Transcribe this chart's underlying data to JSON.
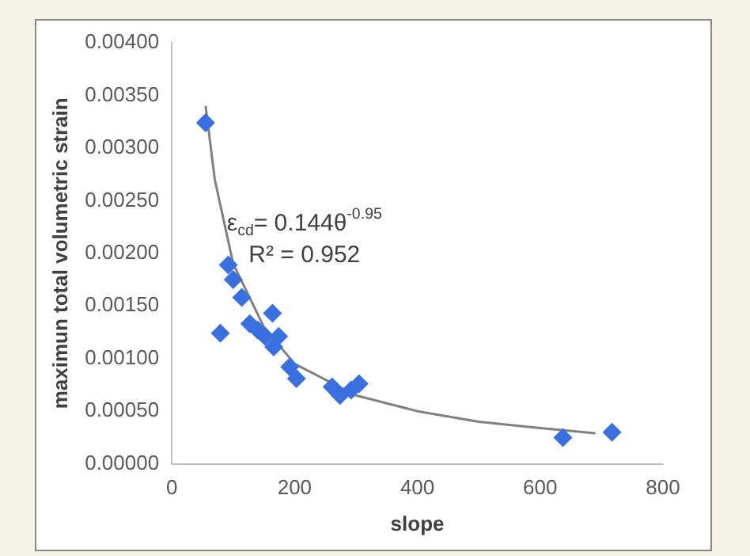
{
  "chart_data": {
    "type": "scatter",
    "xlabel": "slope",
    "ylabel": "maximun total volumetric strain",
    "xlim": [
      0,
      800
    ],
    "xticks": [
      0,
      200,
      400,
      600,
      800
    ],
    "ylim": [
      0,
      0.004
    ],
    "yticks": [
      {
        "value": 0,
        "label": "0.00000"
      },
      {
        "value": 0.0005,
        "label": "0.00050"
      },
      {
        "value": 0.001,
        "label": "0.00100"
      },
      {
        "value": 0.0015,
        "label": "0.00150"
      },
      {
        "value": 0.002,
        "label": "0.00200"
      },
      {
        "value": 0.0025,
        "label": "0.00250"
      },
      {
        "value": 0.003,
        "label": "0.00300"
      },
      {
        "value": 0.0035,
        "label": "0.00350"
      },
      {
        "value": 0.004,
        "label": "0.00400"
      }
    ],
    "grid": false,
    "legend": false,
    "marker": "diamond",
    "series": [
      {
        "color": "#3a6fe0",
        "x": [
          55,
          92,
          100,
          114,
          79,
          127,
          164,
          140,
          152,
          166,
          174,
          192,
          203,
          261,
          274,
          292,
          305,
          637,
          717
        ],
        "values": [
          0.00324,
          0.00189,
          0.00175,
          0.00158,
          0.00124,
          0.00133,
          0.00143,
          0.00127,
          0.00121,
          0.00111,
          0.00121,
          0.00092,
          0.00081,
          0.00073,
          0.00065,
          0.0007,
          0.00076,
          0.00025,
          0.0003
        ]
      },
      {
        "type": "line",
        "color": "#808080",
        "marker": "none",
        "x": [
          55,
          70,
          100,
          150,
          200,
          300,
          400,
          500,
          600,
          690
        ],
        "values": [
          0.0034,
          0.0027,
          0.0019,
          0.0013,
          0.00095,
          0.00065,
          0.0005,
          0.0004,
          0.00034,
          0.00029
        ]
      }
    ],
    "annotations": [
      "ε$_{cd}$= 0.144θ$^{-0.95}$",
      "R² = 0.952"
    ]
  }
}
